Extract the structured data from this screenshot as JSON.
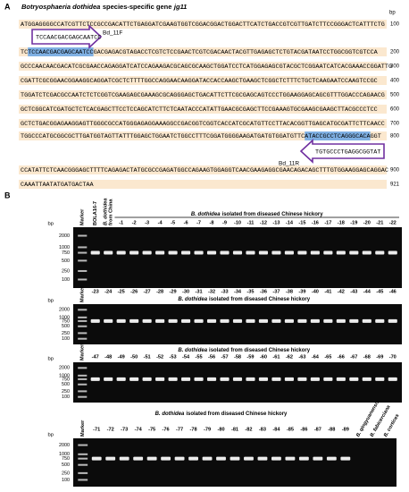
{
  "panel_a": {
    "label": "A",
    "title": [
      "Botryosphaeria dothidea",
      "species-specific gene",
      "jg11"
    ],
    "unit": "bp",
    "rows": [
      {
        "segments": [
          {
            "text": "ATGGAGGGGCCATCGTTCTCCGCCGACATTCTGAGGATCGAAGTGGTCGGACGGACTGGACTTCATCTGACCGTCGTTGATCTTCCGGGACTCATTTCTG"
          }
        ],
        "end": "100"
      },
      {
        "segments": [
          {
            "text": "TC"
          },
          {
            "text": "TCCAACGACGAGCAATCC",
            "highlight": true
          },
          {
            "text": "GACGAGACGTAGACCTCGTCTCCGAACTCGTCGACAACTACGTTGAGAGCTCTGTACGATAATCCTGGCGGTCGTCCA"
          }
        ],
        "end": "200"
      },
      {
        "segments": [
          {
            "text": "GCCCAACAACGACATCGCGAACCAGAGGATCATCCAGAAGACGCAGCGCAAGCTGGATCCTCATGGAGAGCGTACGCTCGGAATCATCACGAAACCGGATTG"
          }
        ],
        "end": "300"
      },
      {
        "segments": [
          {
            "text": "CGATTCGCGGAACGGAAGGCAGGATCGCTCTTTTGGCCAGGAACAAGGATACCACCAAGCTGAAGCTCGGCTCTTTCTGCTCAAGAATCCAAGTCCGC"
          }
        ],
        "end": "400"
      },
      {
        "segments": [
          {
            "text": "TGGATCTCGACGCCAATCTCTCGGTCGAAGAGCGAAAGCGCAGGGAGCTGACATTCTTCGCGAGCAGTCCCTGGAAGGAGCAGCGTTTGGACCCAGAACG"
          }
        ],
        "end": "500"
      },
      {
        "segments": [
          {
            "text": "GCTCGGCATCGATGCTCTCACGAGCTTCCTCCAGCATCTTCTCAATACCCATATTGAACGCGAGCTTCCGAAAGTGCGAAGCGAAGCTTACGCCCTCC"
          }
        ],
        "end": "600"
      },
      {
        "segments": [
          {
            "text": "GCTCTGACGGAGAAGGAGTTGGGCGCCATGGGAGAGGAAAGGCCGACGGTCGGTCACCATCGCATGTTCCTTACACGGTTGAGCATGCGATTCTTCAACC"
          }
        ],
        "end": "700"
      },
      {
        "segments": [
          {
            "text": "TGGCCCATGCGGCGCTTGATGGTAGTTATTTGGAGCTGGAATCTGGCCTTTCGGATGGGGAAGATGATGTGGATGTTC"
          },
          {
            "text": "ATACCGCCTCAGGGCACA",
            "highlight": true
          },
          {
            "text": "GGT"
          }
        ],
        "end": "800"
      },
      {
        "segments": [
          {
            "text": "CCATATTCTCAACGGGAGCTTTTCAGAGACTATGCGCCGAGATGGCCAGAAGTGGAGGTCAACGAAGAGGCGAACAGACAGCTTTGTGGAAGGAGCAGGAC"
          }
        ],
        "end": "900"
      },
      {
        "segments": [
          {
            "text": "CAAATTAATATGATGACTAA"
          }
        ],
        "end": "921"
      }
    ],
    "forward_primer": {
      "sequence": "TCCAACGACGAGCAATCC",
      "name": "Bd_11F"
    },
    "reverse_primer": {
      "sequence": "TGTGCCCTGAGGCGGTAT",
      "name": "Bd_11R"
    }
  },
  "panel_b": {
    "label": "B",
    "unit": "bp",
    "ladder": [
      "2000",
      "1000",
      "750",
      "500",
      "250",
      "100"
    ],
    "gels": [
      {
        "header": [
          "B. dothidea",
          "isolated from diseased Chinese hickory"
        ],
        "marker": "Marker",
        "controls": [
          [
            "BOLA16-7"
          ],
          [
            "B. dothidea",
            "from China"
          ]
        ],
        "lanes": [
          "-1",
          "-2",
          "-3",
          "-4",
          "-5",
          "-6",
          "-7",
          "-8",
          "-9",
          "-10",
          "-11",
          "-12",
          "-13",
          "-14",
          "-15",
          "-16",
          "-17",
          "-18",
          "-19",
          "-20",
          "-21",
          "-22"
        ],
        "others": []
      },
      {
        "header": [
          "B. dothidea",
          "isolated from diseased Chinese hickory"
        ],
        "marker": "Marker",
        "controls": [],
        "lanes": [
          "-23",
          "-24",
          "-25",
          "-26",
          "-27",
          "-28",
          "-29",
          "-30",
          "-31",
          "-32",
          "-33",
          "-34",
          "-35",
          "-36",
          "-37",
          "-38",
          "-39",
          "-40",
          "-41",
          "-42",
          "-43",
          "-44",
          "-45",
          "-46"
        ],
        "others": []
      },
      {
        "header": [
          "B. dothidea",
          "isolated from diseased Chinese hickory"
        ],
        "marker": "Marker",
        "controls": [],
        "lanes": [
          "-47",
          "-48",
          "-49",
          "-50",
          "-51",
          "-52",
          "-53",
          "-54",
          "-55",
          "-56",
          "-57",
          "-58",
          "-59",
          "-60",
          "-61",
          "-62",
          "-63",
          "-64",
          "-65",
          "-66",
          "-67",
          "-68",
          "-69",
          "-70"
        ],
        "others": []
      },
      {
        "header": [
          "B. dothidea",
          "isolated from diseased Chinese hickory"
        ],
        "marker": "Marker",
        "controls": [],
        "lanes": [
          "-71",
          "-72",
          "-73",
          "-74",
          "-75",
          "-76",
          "-77",
          "-78",
          "-79",
          "-80",
          "-81",
          "-82",
          "-83",
          "-84",
          "-85",
          "-86",
          "-87",
          "-88",
          "-89"
        ],
        "others": [
          "B. qingyuanensis",
          "B. fabicerciana",
          "B. cortices"
        ]
      }
    ]
  }
}
